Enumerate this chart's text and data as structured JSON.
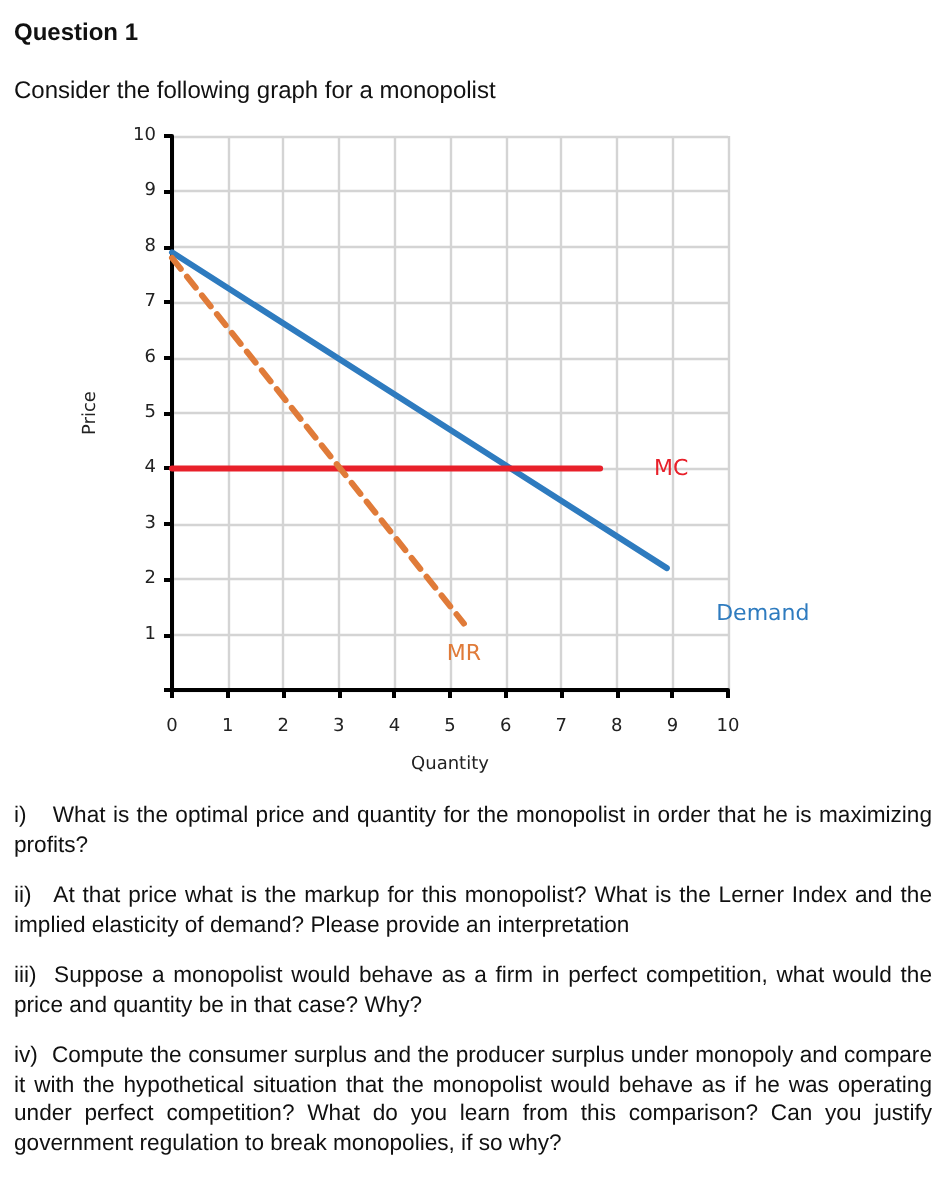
{
  "chart_data": {
    "type": "line",
    "title": "Question 1",
    "subtitle": "Consider the following graph for a monopolist",
    "xlabel": "Quantity",
    "ylabel": "Price",
    "xlim": [
      0,
      10
    ],
    "ylim": [
      0,
      10
    ],
    "xticks": [
      0,
      1,
      2,
      3,
      4,
      5,
      6,
      7,
      8,
      9,
      10
    ],
    "yticks": [
      {
        "value": 0,
        "label": null
      },
      1,
      2,
      3,
      4,
      5,
      6,
      7,
      8,
      9,
      10
    ],
    "grid": true,
    "legend": false,
    "marker": "none",
    "series": [
      {
        "name": "Demand",
        "color": "#2e7bbf",
        "x": [
          0,
          8.9
        ],
        "values": [
          7.9,
          2.2
        ],
        "line_style": "solid"
      },
      {
        "name": "MC",
        "color": "#e8202a",
        "x": [
          0,
          7.7
        ],
        "values": [
          4,
          4
        ],
        "line_style": "solid"
      },
      {
        "name": "MR",
        "color": "#e07b39",
        "x": [
          0,
          5.25
        ],
        "values": [
          7.8,
          1.2
        ],
        "line_style": "dashed"
      }
    ],
    "annotations": [
      "i)\tWhat is the optimal price and quantity for the monopolist in order that he is maximizing profits?",
      "ii)\tAt that price what is the markup for this monopolist? What is the Lerner Index and the implied elasticity of demand? Please provide an interpretation",
      "iii)\tSuppose a monopolist would behave as a firm in perfect competition, what would the price and quantity be in that case? Why?",
      "iv)\tCompute the consumer surplus and the producer surplus under monopoly and compare it with the hypothetical situation that the monopolist would behave as if he was operating under perfect competition? What do you learn from this comparison? Can you justify government regulation to break monopolies, if so why?"
    ]
  }
}
